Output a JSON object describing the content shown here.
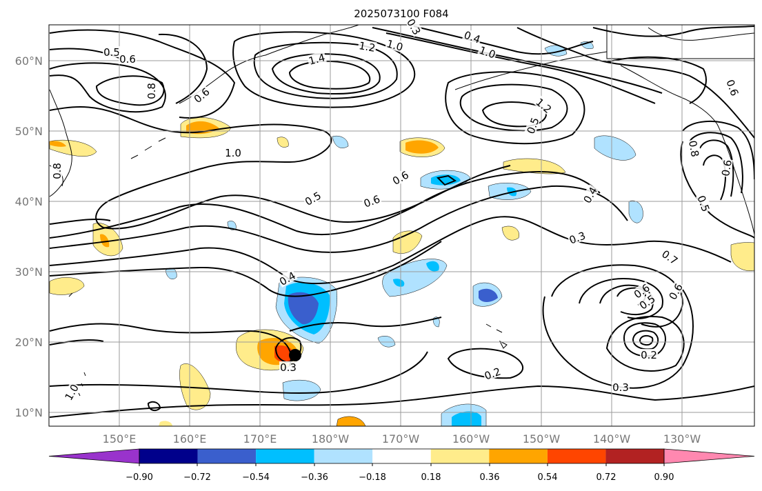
{
  "title": "2025073100 F084",
  "lat_labels": [
    "60°N",
    "50°N",
    "40°N",
    "30°N",
    "20°N",
    "10°N"
  ],
  "lon_labels": [
    "150°E",
    "160°E",
    "170°E",
    "180°W",
    "170°W",
    "160°W",
    "150°W",
    "140°W",
    "130°W"
  ],
  "colorbar": {
    "tick_labels": [
      "−0.90",
      "−0.72",
      "−0.54",
      "−0.36",
      "−0.18",
      "0.18",
      "0.36",
      "0.54",
      "0.72",
      "0.90"
    ],
    "colors": [
      "#9933cc",
      "#00008b",
      "#3a5fcd",
      "#00bfff",
      "#b0e2ff",
      "#ffffff",
      "#ffec8b",
      "#ffa500",
      "#ff4500",
      "#b22222",
      "#ff88b0"
    ]
  },
  "contour_labels": [
    "0.5",
    "0.6",
    "0.8",
    "0.6",
    "1.4",
    "1.2",
    "1.0",
    "0.3",
    "0.4",
    "1.0",
    "1.2",
    "0.5",
    "0.8",
    "1.0",
    "0.5",
    "0.6",
    "0.6",
    "0.4",
    "0.3",
    "0.4",
    "0.7",
    "0.6",
    "0.5",
    "0.6",
    "0.2",
    "0.2",
    "0.3",
    "0.3",
    "1.0",
    "0.8",
    "0.6",
    "0.5",
    "0.6"
  ],
  "marker": {
    "name": "storm-center"
  }
}
